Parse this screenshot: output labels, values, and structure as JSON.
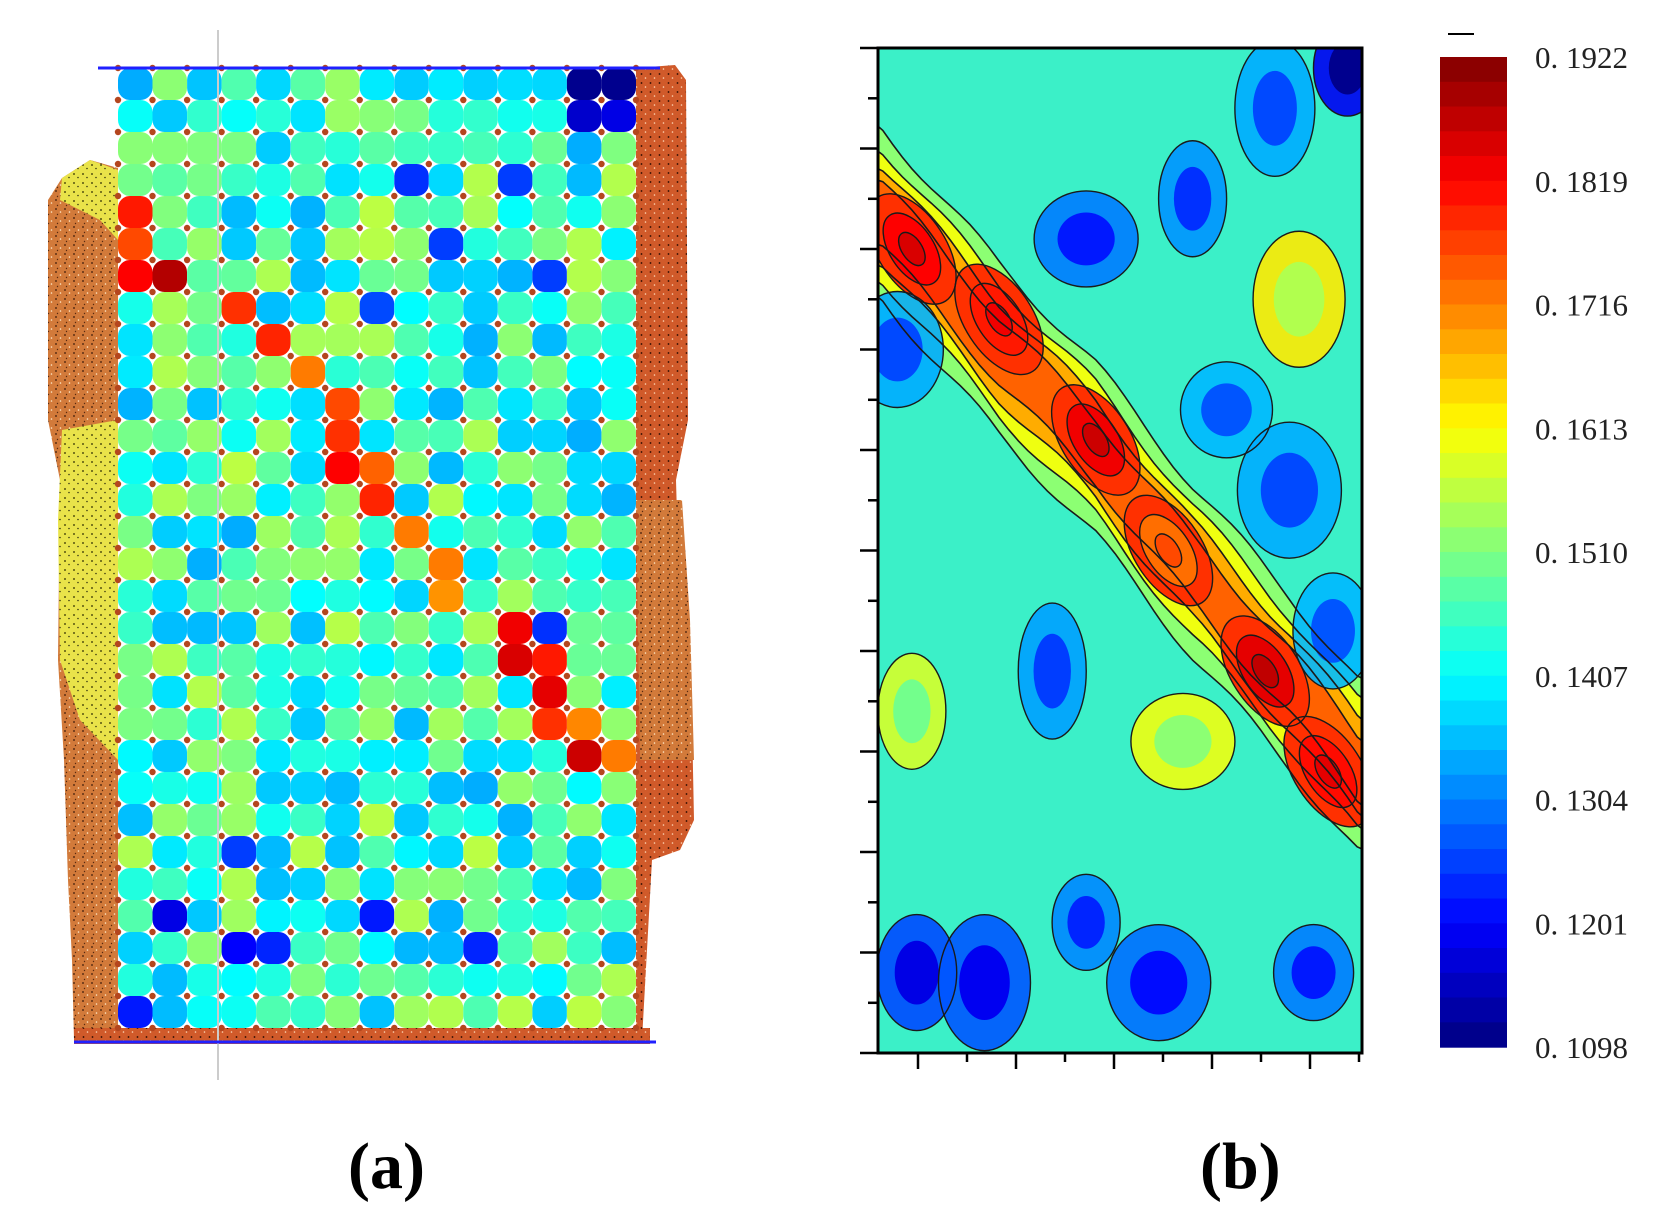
{
  "figure": {
    "panels": [
      {
        "id": "a",
        "label": "(a)"
      },
      {
        "id": "b",
        "label": "(b)"
      }
    ]
  },
  "colors": {
    "deep_blue": "#0000ff",
    "cyan": "#00ffff",
    "green": "#00e000",
    "yellow": "#ffff00",
    "orange": "#ff8c00",
    "red": "#ff0000",
    "contour_line": "#1a1a1a",
    "boundary_line": "#2020ff",
    "specimen_side_orange": "#d27a3a",
    "specimen_side_yellow": "#e9e34a"
  },
  "chart_data": [
    {
      "type": "heatmap",
      "panel": "a",
      "title": "",
      "xlabel": "",
      "ylabel": "",
      "grid": {
        "rows": 30,
        "cols": 15
      },
      "note_scale": "shares colour scale of panel (b)",
      "high_value_band": [
        {
          "row": 6,
          "col": 1,
          "value": 0.188
        },
        {
          "row": 7,
          "col": 3,
          "value": 0.178
        },
        {
          "row": 8,
          "col": 4,
          "value": 0.179
        },
        {
          "row": 9,
          "col": 5,
          "value": 0.172
        },
        {
          "row": 10,
          "col": 6,
          "value": 0.176
        },
        {
          "row": 11,
          "col": 6,
          "value": 0.178
        },
        {
          "row": 12,
          "col": 6,
          "value": 0.182
        },
        {
          "row": 12,
          "col": 7,
          "value": 0.174
        },
        {
          "row": 13,
          "col": 7,
          "value": 0.179
        },
        {
          "row": 14,
          "col": 8,
          "value": 0.172
        },
        {
          "row": 15,
          "col": 9,
          "value": 0.172
        },
        {
          "row": 16,
          "col": 9,
          "value": 0.17
        },
        {
          "row": 17,
          "col": 11,
          "value": 0.183
        },
        {
          "row": 18,
          "col": 11,
          "value": 0.185
        },
        {
          "row": 18,
          "col": 12,
          "value": 0.18
        },
        {
          "row": 19,
          "col": 12,
          "value": 0.184
        },
        {
          "row": 20,
          "col": 12,
          "value": 0.178
        },
        {
          "row": 20,
          "col": 13,
          "value": 0.171
        },
        {
          "row": 21,
          "col": 13,
          "value": 0.186
        },
        {
          "row": 21,
          "col": 14,
          "value": 0.172
        },
        {
          "row": 4,
          "col": 0,
          "value": 0.18
        },
        {
          "row": 5,
          "col": 0,
          "value": 0.176
        },
        {
          "row": 6,
          "col": 0,
          "value": 0.182
        }
      ],
      "low_value_cells": [
        {
          "row": 0,
          "col": 13,
          "value": 0.111
        },
        {
          "row": 0,
          "col": 14,
          "value": 0.111
        },
        {
          "row": 1,
          "col": 13,
          "value": 0.116
        },
        {
          "row": 1,
          "col": 14,
          "value": 0.118
        },
        {
          "row": 26,
          "col": 1,
          "value": 0.118
        },
        {
          "row": 27,
          "col": 3,
          "value": 0.12
        },
        {
          "row": 27,
          "col": 4,
          "value": 0.123
        },
        {
          "row": 26,
          "col": 7,
          "value": 0.122
        },
        {
          "row": 29,
          "col": 0,
          "value": 0.122
        },
        {
          "row": 24,
          "col": 3,
          "value": 0.125
        },
        {
          "row": 6,
          "col": 12,
          "value": 0.125
        },
        {
          "row": 17,
          "col": 12,
          "value": 0.124
        },
        {
          "row": 5,
          "col": 9,
          "value": 0.125
        },
        {
          "row": 7,
          "col": 7,
          "value": 0.126
        },
        {
          "row": 3,
          "col": 8,
          "value": 0.124
        },
        {
          "row": 27,
          "col": 10,
          "value": 0.123
        },
        {
          "row": 3,
          "col": 11,
          "value": 0.125
        }
      ]
    },
    {
      "type": "heatmap",
      "panel": "b",
      "title": "",
      "xlabel": "",
      "ylabel": "",
      "x_ticks": 10,
      "y_ticks": 21,
      "tick_labels_shown": false,
      "band": {
        "description": "diagonal high-value band from upper-left to lower-right",
        "centerline_y_at_x": [
          {
            "x": 0.0,
            "y": 0.16
          },
          {
            "x": 0.25,
            "y": 0.3
          },
          {
            "x": 0.45,
            "y": 0.4
          },
          {
            "x": 0.65,
            "y": 0.52
          },
          {
            "x": 0.85,
            "y": 0.63
          },
          {
            "x": 1.0,
            "y": 0.72
          }
        ],
        "peaks": [
          {
            "x": 0.07,
            "y": 0.2,
            "value": 0.185
          },
          {
            "x": 0.25,
            "y": 0.27,
            "value": 0.183
          },
          {
            "x": 0.45,
            "y": 0.39,
            "value": 0.186
          },
          {
            "x": 0.6,
            "y": 0.5,
            "value": 0.176
          },
          {
            "x": 0.8,
            "y": 0.62,
            "value": 0.187
          },
          {
            "x": 0.93,
            "y": 0.72,
            "value": 0.184
          }
        ]
      },
      "background_value": 0.14,
      "low_spots": [
        {
          "x": 0.97,
          "y": 0.02,
          "value": 0.111
        },
        {
          "x": 0.08,
          "y": 0.92,
          "value": 0.118
        },
        {
          "x": 0.22,
          "y": 0.93,
          "value": 0.119
        },
        {
          "x": 0.43,
          "y": 0.19,
          "value": 0.122
        },
        {
          "x": 0.65,
          "y": 0.15,
          "value": 0.124
        },
        {
          "x": 0.82,
          "y": 0.06,
          "value": 0.126
        },
        {
          "x": 0.72,
          "y": 0.36,
          "value": 0.127
        },
        {
          "x": 0.58,
          "y": 0.93,
          "value": 0.121
        },
        {
          "x": 0.36,
          "y": 0.62,
          "value": 0.125
        },
        {
          "x": 0.9,
          "y": 0.92,
          "value": 0.122
        },
        {
          "x": 0.04,
          "y": 0.3,
          "value": 0.126
        },
        {
          "x": 0.85,
          "y": 0.44,
          "value": 0.126
        },
        {
          "x": 0.43,
          "y": 0.87,
          "value": 0.123
        },
        {
          "x": 0.94,
          "y": 0.58,
          "value": 0.127
        }
      ],
      "mid_spots": [
        {
          "x": 0.87,
          "y": 0.25,
          "value": 0.155
        },
        {
          "x": 0.63,
          "y": 0.69,
          "value": 0.152
        },
        {
          "x": 0.07,
          "y": 0.66,
          "value": 0.15
        }
      ],
      "colorbar": {
        "min": 0.1098,
        "max": 0.1922,
        "ticks": [
          "0. 1922",
          "0. 1819",
          "0. 1716",
          "0. 1613",
          "0. 1510",
          "0. 1407",
          "0. 1304",
          "0. 1201",
          "0. 1098"
        ]
      }
    }
  ]
}
